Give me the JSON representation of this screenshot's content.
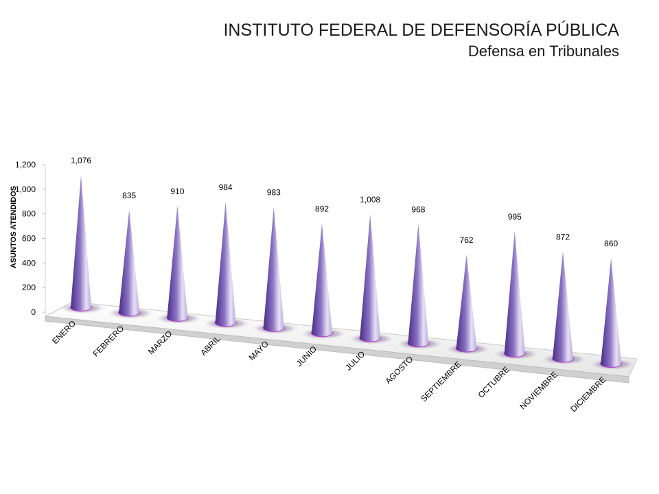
{
  "header": {
    "title": "INSTITUTO FEDERAL DE DEFENSORÍA PÚBLICA",
    "subtitle": "Defensa en Tribunales"
  },
  "chart_data": {
    "type": "bar",
    "style": "3d-cone",
    "title": "INSTITUTO FEDERAL DE DEFENSORÍA PÚBLICA",
    "subtitle": "Defensa en Tribunales",
    "ylabel": "ASUNTOS ATENDIDOS",
    "xlabel": "",
    "ylim": [
      0,
      1200
    ],
    "yticks": [
      "0",
      "200",
      "400",
      "600",
      "800",
      "1,000",
      "1,200"
    ],
    "categories": [
      "ENERO",
      "FEBRERO",
      "MARZO",
      "ABRIL",
      "MAYO",
      "JUNIO",
      "JULIO",
      "AGOSTO",
      "SEPTIEMBRE",
      "OCTUBRE",
      "NOVIEMBRE",
      "DICIEMBRE"
    ],
    "values": [
      1076,
      835,
      910,
      984,
      983,
      892,
      1008,
      968,
      762,
      995,
      872,
      860
    ],
    "value_labels": [
      "1,076",
      "835",
      "910",
      "984",
      "983",
      "892",
      "1,008",
      "968",
      "762",
      "995",
      "872",
      "860"
    ],
    "colors": {
      "cone_dark": "#4b2c86",
      "cone_mid": "#8a73c4",
      "cone_light": "#e7e1f4",
      "base_ring": "#b43cc8"
    },
    "grid": false,
    "legend": "none"
  }
}
